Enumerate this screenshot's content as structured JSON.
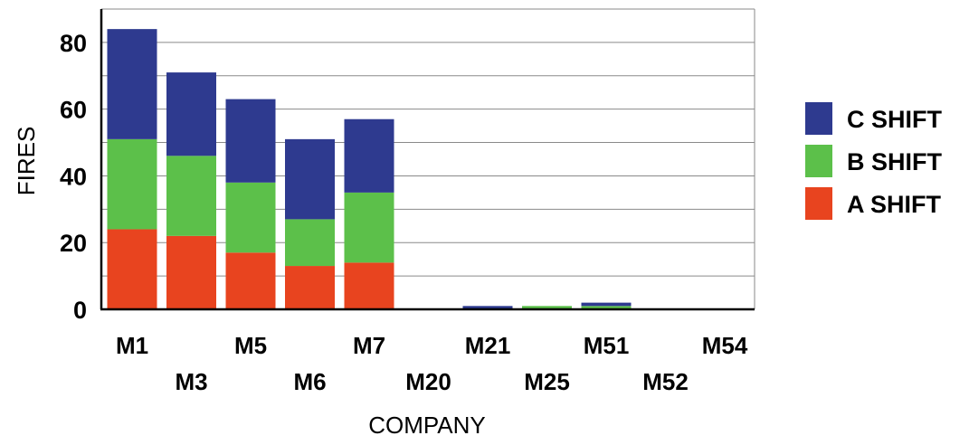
{
  "colors": {
    "c_shift": "#2e3a8f",
    "b_shift": "#5cc04a",
    "a_shift": "#e8441f",
    "grid": "#8a8a8a",
    "axis": "#000000",
    "text": "#000000"
  },
  "chart_data": {
    "type": "bar",
    "stacked": true,
    "title": "",
    "xlabel": "COMPANY",
    "ylabel": "FIRES",
    "ylim": [
      0,
      90
    ],
    "yticks": [
      0,
      20,
      40,
      60,
      80
    ],
    "grid": true,
    "legend_position": "right",
    "categories": [
      "M1",
      "M3",
      "M5",
      "M6",
      "M7",
      "M20",
      "M21",
      "M25",
      "M51",
      "M52",
      "M54"
    ],
    "series": [
      {
        "name": "A SHIFT",
        "color_key": "a_shift",
        "values": [
          24,
          22,
          17,
          13,
          14,
          0,
          0,
          0,
          0,
          0,
          0
        ]
      },
      {
        "name": "B SHIFT",
        "color_key": "b_shift",
        "values": [
          27,
          24,
          21,
          14,
          21,
          0,
          0,
          1,
          1,
          0,
          0
        ]
      },
      {
        "name": "C SHIFT",
        "color_key": "c_shift",
        "values": [
          33,
          25,
          25,
          24,
          22,
          0,
          1,
          0,
          1,
          0,
          0
        ]
      }
    ],
    "legend_order": [
      "C SHIFT",
      "B SHIFT",
      "A SHIFT"
    ]
  }
}
